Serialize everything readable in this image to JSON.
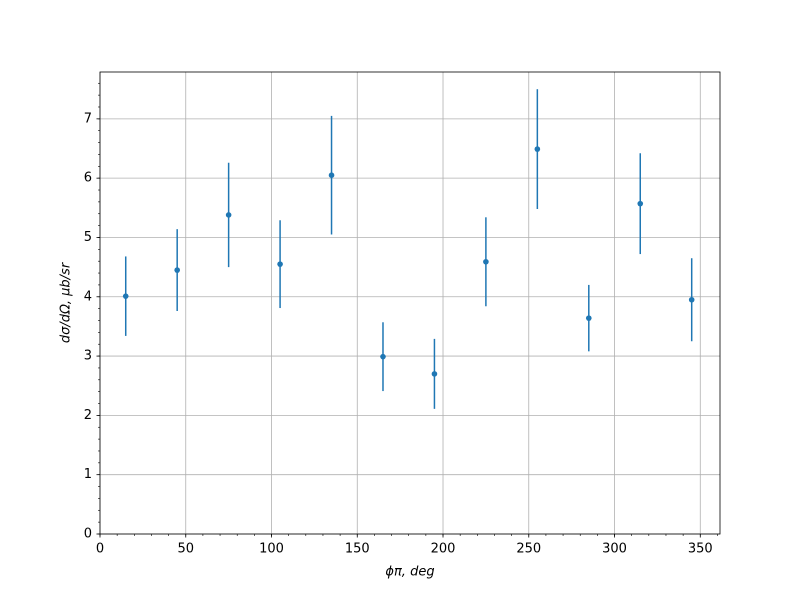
{
  "chart_data": {
    "type": "errorbar",
    "x_label": "ϕπ, deg",
    "y_label": "dσ/dΩ, μb/sr",
    "x": [
      15,
      45,
      75,
      105,
      135,
      165,
      195,
      225,
      255,
      285,
      315,
      345
    ],
    "values": [
      4.01,
      4.45,
      5.38,
      4.55,
      6.05,
      2.99,
      2.7,
      4.59,
      6.49,
      3.64,
      5.57,
      3.95
    ],
    "errors": [
      0.67,
      0.69,
      0.88,
      0.74,
      1.0,
      0.58,
      0.59,
      0.75,
      1.01,
      0.56,
      0.85,
      0.7
    ],
    "color": "#1f77b4",
    "xlim": [
      0,
      361.5
    ],
    "ylim": [
      0,
      7.79
    ],
    "xticks": [
      0,
      50,
      100,
      150,
      200,
      250,
      300,
      350
    ],
    "yticks": [
      0,
      1,
      2,
      3,
      4,
      5,
      6,
      7
    ],
    "grid": true,
    "minor_ticks": true
  }
}
